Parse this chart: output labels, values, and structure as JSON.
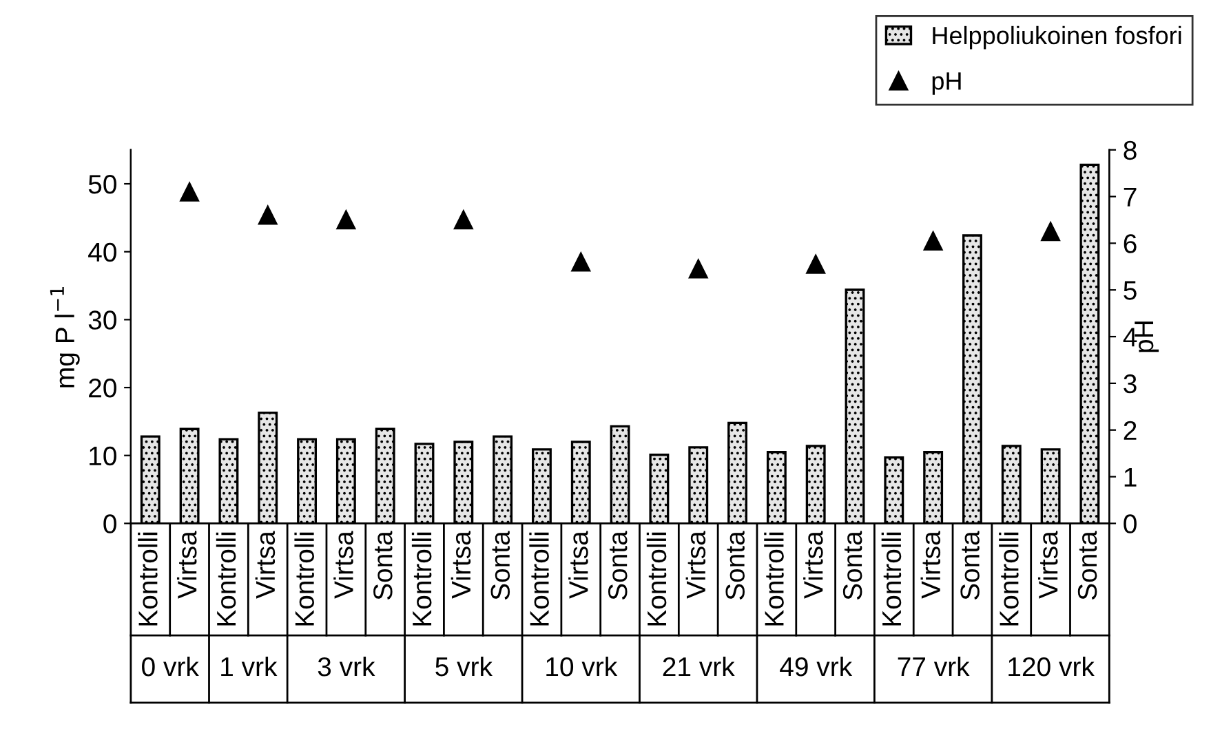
{
  "chart_data": {
    "type": "bar",
    "ylabel": "mg P l$^{−1}$",
    "y2label": "pH",
    "categories": [
      "Kontrolli",
      "Virtsa",
      "Kontrolli",
      "Virtsa",
      "Kontrolli",
      "Virtsa",
      "Sonta",
      "Kontrolli",
      "Virtsa",
      "Sonta",
      "Kontrolli",
      "Virtsa",
      "Sonta",
      "Kontrolli",
      "Virtsa",
      "Sonta",
      "Kontrolli",
      "Virtsa",
      "Sonta",
      "Kontrolli",
      "Virtsa",
      "Sonta",
      "Kontrolli",
      "Virtsa",
      "Sonta"
    ],
    "series": [
      {
        "name": "Helppoliukoinen fosfori",
        "color": "#e6e6e6",
        "values": [
          12.8,
          13.9,
          12.4,
          16.3,
          12.4,
          12.4,
          13.9,
          11.7,
          12.0,
          12.8,
          10.9,
          12.0,
          14.3,
          10.1,
          11.2,
          14.8,
          10.5,
          11.4,
          34.4,
          9.7,
          10.5,
          42.4,
          11.4,
          10.9,
          52.8
        ]
      },
      {
        "name": "pH",
        "type": "scatter",
        "axis": "y2",
        "color": "#000000",
        "marker": "triangle",
        "values": [
          null,
          7.1,
          null,
          6.6,
          null,
          6.5,
          null,
          null,
          6.5,
          null,
          null,
          5.6,
          null,
          null,
          5.45,
          null,
          null,
          5.55,
          null,
          null,
          6.05,
          null,
          null,
          6.25,
          null
        ]
      }
    ],
    "annotations": [
      "0 vrk",
      "1 vrk",
      "3 vrk",
      "5 vrk",
      "10 vrk",
      "21 vrk",
      "49 vrk",
      "77 vrk",
      "120 vrk"
    ],
    "ylim": [
      0,
      55
    ],
    "yticks": [
      0,
      10,
      20,
      30,
      40,
      50
    ],
    "y2lim": [
      0,
      8
    ],
    "y2ticks": [
      0,
      1,
      2,
      3,
      4,
      5,
      6,
      7,
      8
    ],
    "legend": "top right",
    "grid": false
  }
}
